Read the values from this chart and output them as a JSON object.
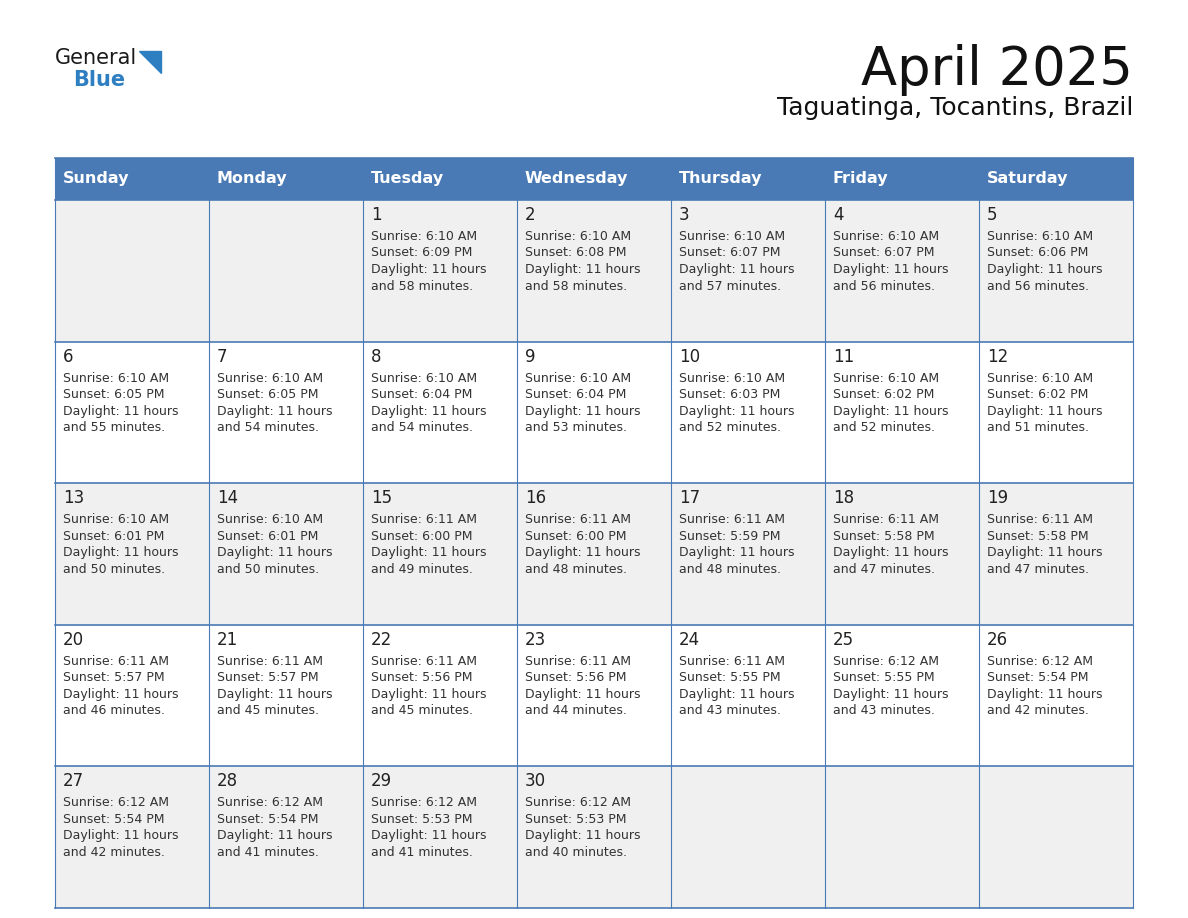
{
  "title": "April 2025",
  "subtitle": "Taguatinga, Tocantins, Brazil",
  "days_of_week": [
    "Sunday",
    "Monday",
    "Tuesday",
    "Wednesday",
    "Thursday",
    "Friday",
    "Saturday"
  ],
  "header_bg_color": "#4a7ab5",
  "header_text_color": "#ffffff",
  "odd_row_bg": "#f0f0f0",
  "even_row_bg": "#ffffff",
  "border_color": "#4a7ab5",
  "day_num_color": "#222222",
  "cell_text_color": "#333333",
  "title_color": "#111111",
  "subtitle_color": "#111111",
  "logo_general_color": "#1a1a1a",
  "logo_blue_color": "#2e7fc1",
  "calendar": [
    [
      {
        "day": null,
        "sunrise": null,
        "sunset": null,
        "daylight": null
      },
      {
        "day": null,
        "sunrise": null,
        "sunset": null,
        "daylight": null
      },
      {
        "day": 1,
        "sunrise": "6:10 AM",
        "sunset": "6:09 PM",
        "daylight": "11 hours and 58 minutes"
      },
      {
        "day": 2,
        "sunrise": "6:10 AM",
        "sunset": "6:08 PM",
        "daylight": "11 hours and 58 minutes"
      },
      {
        "day": 3,
        "sunrise": "6:10 AM",
        "sunset": "6:07 PM",
        "daylight": "11 hours and 57 minutes"
      },
      {
        "day": 4,
        "sunrise": "6:10 AM",
        "sunset": "6:07 PM",
        "daylight": "11 hours and 56 minutes"
      },
      {
        "day": 5,
        "sunrise": "6:10 AM",
        "sunset": "6:06 PM",
        "daylight": "11 hours and 56 minutes"
      }
    ],
    [
      {
        "day": 6,
        "sunrise": "6:10 AM",
        "sunset": "6:05 PM",
        "daylight": "11 hours and 55 minutes"
      },
      {
        "day": 7,
        "sunrise": "6:10 AM",
        "sunset": "6:05 PM",
        "daylight": "11 hours and 54 minutes"
      },
      {
        "day": 8,
        "sunrise": "6:10 AM",
        "sunset": "6:04 PM",
        "daylight": "11 hours and 54 minutes"
      },
      {
        "day": 9,
        "sunrise": "6:10 AM",
        "sunset": "6:04 PM",
        "daylight": "11 hours and 53 minutes"
      },
      {
        "day": 10,
        "sunrise": "6:10 AM",
        "sunset": "6:03 PM",
        "daylight": "11 hours and 52 minutes"
      },
      {
        "day": 11,
        "sunrise": "6:10 AM",
        "sunset": "6:02 PM",
        "daylight": "11 hours and 52 minutes"
      },
      {
        "day": 12,
        "sunrise": "6:10 AM",
        "sunset": "6:02 PM",
        "daylight": "11 hours and 51 minutes"
      }
    ],
    [
      {
        "day": 13,
        "sunrise": "6:10 AM",
        "sunset": "6:01 PM",
        "daylight": "11 hours and 50 minutes"
      },
      {
        "day": 14,
        "sunrise": "6:10 AM",
        "sunset": "6:01 PM",
        "daylight": "11 hours and 50 minutes"
      },
      {
        "day": 15,
        "sunrise": "6:11 AM",
        "sunset": "6:00 PM",
        "daylight": "11 hours and 49 minutes"
      },
      {
        "day": 16,
        "sunrise": "6:11 AM",
        "sunset": "6:00 PM",
        "daylight": "11 hours and 48 minutes"
      },
      {
        "day": 17,
        "sunrise": "6:11 AM",
        "sunset": "5:59 PM",
        "daylight": "11 hours and 48 minutes"
      },
      {
        "day": 18,
        "sunrise": "6:11 AM",
        "sunset": "5:58 PM",
        "daylight": "11 hours and 47 minutes"
      },
      {
        "day": 19,
        "sunrise": "6:11 AM",
        "sunset": "5:58 PM",
        "daylight": "11 hours and 47 minutes"
      }
    ],
    [
      {
        "day": 20,
        "sunrise": "6:11 AM",
        "sunset": "5:57 PM",
        "daylight": "11 hours and 46 minutes"
      },
      {
        "day": 21,
        "sunrise": "6:11 AM",
        "sunset": "5:57 PM",
        "daylight": "11 hours and 45 minutes"
      },
      {
        "day": 22,
        "sunrise": "6:11 AM",
        "sunset": "5:56 PM",
        "daylight": "11 hours and 45 minutes"
      },
      {
        "day": 23,
        "sunrise": "6:11 AM",
        "sunset": "5:56 PM",
        "daylight": "11 hours and 44 minutes"
      },
      {
        "day": 24,
        "sunrise": "6:11 AM",
        "sunset": "5:55 PM",
        "daylight": "11 hours and 43 minutes"
      },
      {
        "day": 25,
        "sunrise": "6:12 AM",
        "sunset": "5:55 PM",
        "daylight": "11 hours and 43 minutes"
      },
      {
        "day": 26,
        "sunrise": "6:12 AM",
        "sunset": "5:54 PM",
        "daylight": "11 hours and 42 minutes"
      }
    ],
    [
      {
        "day": 27,
        "sunrise": "6:12 AM",
        "sunset": "5:54 PM",
        "daylight": "11 hours and 42 minutes"
      },
      {
        "day": 28,
        "sunrise": "6:12 AM",
        "sunset": "5:54 PM",
        "daylight": "11 hours and 41 minutes"
      },
      {
        "day": 29,
        "sunrise": "6:12 AM",
        "sunset": "5:53 PM",
        "daylight": "11 hours and 41 minutes"
      },
      {
        "day": 30,
        "sunrise": "6:12 AM",
        "sunset": "5:53 PM",
        "daylight": "11 hours and 40 minutes"
      },
      {
        "day": null,
        "sunrise": null,
        "sunset": null,
        "daylight": null
      },
      {
        "day": null,
        "sunrise": null,
        "sunset": null,
        "daylight": null
      },
      {
        "day": null,
        "sunrise": null,
        "sunset": null,
        "daylight": null
      }
    ]
  ]
}
